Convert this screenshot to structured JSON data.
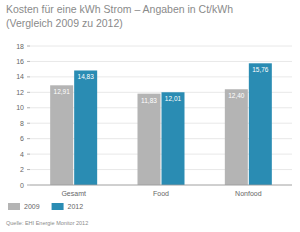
{
  "chart_data": {
    "type": "bar",
    "title": "Kosten für eine kWh Strom – Angaben in Ct/kWh",
    "subtitle": "(Vergleich 2009 zu 2012)",
    "categories": [
      "Gesamt",
      "Food",
      "Nonfood"
    ],
    "series": [
      {
        "name": "2009",
        "color": "#b4b4b4",
        "values": [
          12.91,
          11.83,
          12.4
        ],
        "value_labels": [
          "12,91",
          "11,83",
          "12,40"
        ]
      },
      {
        "name": "2012",
        "color": "#2a8cb3",
        "values": [
          14.83,
          12.01,
          15.76
        ],
        "value_labels": [
          "14,83",
          "12,01",
          "15,76"
        ]
      }
    ],
    "ylim": [
      0,
      18
    ],
    "yticks": [
      0,
      2,
      4,
      6,
      8,
      10,
      12,
      14,
      16,
      18
    ],
    "grid": true,
    "legend": "bottom-left",
    "data_labels": true,
    "source": "Quelle: EHI Energie Monitor 2012"
  }
}
